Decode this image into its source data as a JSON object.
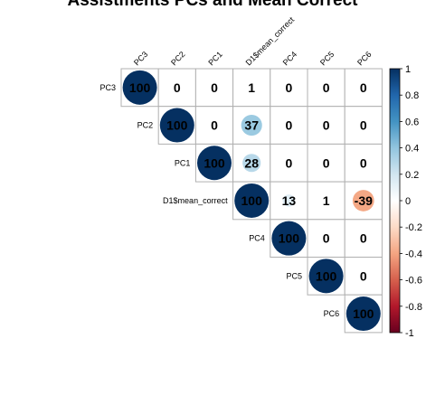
{
  "chart_data": {
    "type": "heatmap",
    "subtype": "correlation-matrix-upper-circles",
    "title": "Assistments PCs and Mean Correct",
    "variables": [
      "PC3",
      "PC2",
      "PC1",
      "D1$mean_correct",
      "PC4",
      "PC5",
      "PC6"
    ],
    "matrix": [
      [
        100,
        0,
        0,
        1,
        0,
        0,
        0
      ],
      [
        null,
        100,
        0,
        37,
        0,
        0,
        0
      ],
      [
        null,
        null,
        100,
        28,
        0,
        0,
        0
      ],
      [
        null,
        null,
        null,
        100,
        13,
        1,
        -39
      ],
      [
        null,
        null,
        null,
        null,
        100,
        0,
        0
      ],
      [
        null,
        null,
        null,
        null,
        null,
        100,
        0
      ],
      [
        null,
        null,
        null,
        null,
        null,
        null,
        100
      ]
    ],
    "value_scale": 100,
    "colorbar": {
      "range": [
        -1,
        1
      ],
      "ticks": [
        "1",
        "0.8",
        "0.6",
        "0.4",
        "0.2",
        "0",
        "-0.2",
        "-0.4",
        "-0.6",
        "-0.8",
        "-1"
      ],
      "colors": [
        "#67001F",
        "#B2182B",
        "#D6604D",
        "#F4A582",
        "#FDDBC7",
        "#FFFFFF",
        "#D1E5F0",
        "#92C5DE",
        "#4393C3",
        "#2166AC",
        "#053061"
      ]
    },
    "grid": true,
    "legend": "right"
  }
}
